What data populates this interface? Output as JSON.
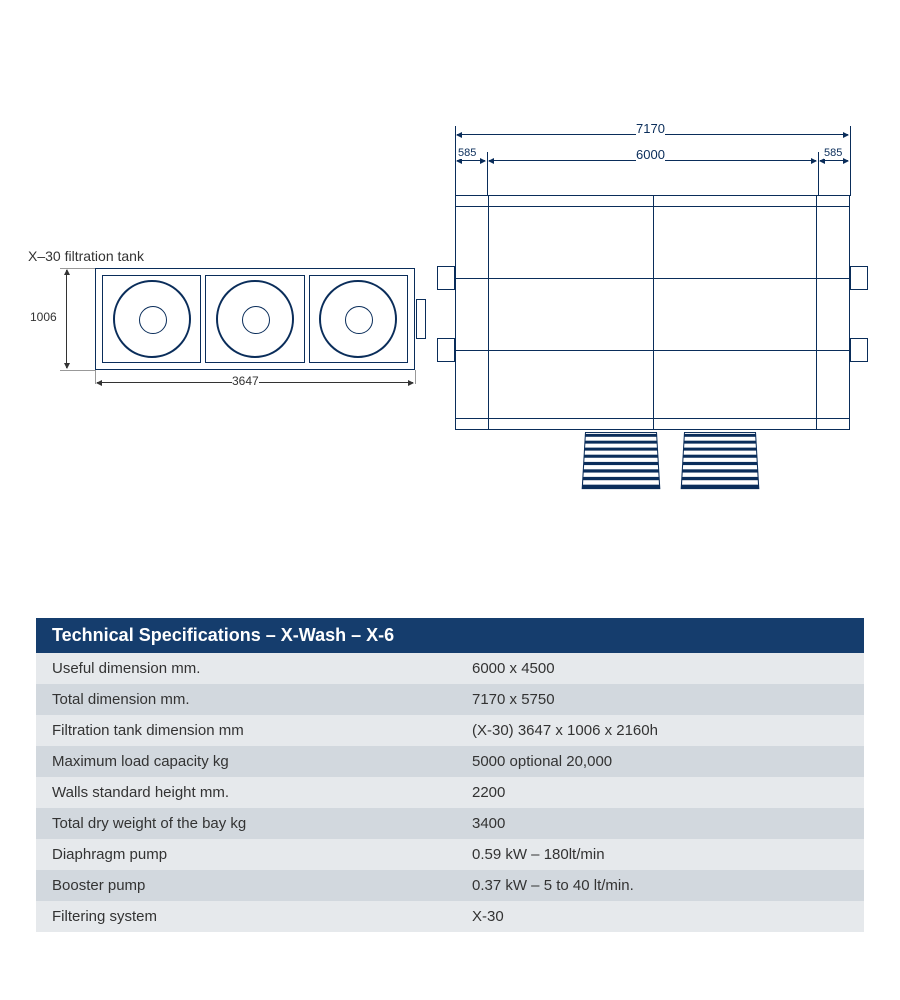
{
  "colors": {
    "drawing_stroke": "#0a2d5a",
    "text": "#333333",
    "table_header_bg": "#153d6d",
    "table_header_text": "#ffffff",
    "row_light": "#e6e9ec",
    "row_dark": "#d2d8de"
  },
  "tank": {
    "label": "X–30 filtration tank",
    "width_label": "3647",
    "height_label": "1006",
    "circles": 3
  },
  "bay": {
    "dim_total_label": "7170",
    "dim_inner_label": "6000",
    "dim_side_left_label": "585",
    "dim_side_right_label": "585"
  },
  "spec": {
    "title": "Technical Specifications – X-Wash – X-6",
    "rows": [
      {
        "label": "Useful dimension mm.",
        "value": "6000 x 4500"
      },
      {
        "label": "Total dimension mm.",
        "value": "7170 x 5750"
      },
      {
        "label": "Filtration tank dimension mm",
        "value": "(X-30)  3647 x 1006 x 2160h"
      },
      {
        "label": "Maximum load capacity kg",
        "value": "5000 optional 20,000"
      },
      {
        "label": "Walls standard height  mm.",
        "value": "2200"
      },
      {
        "label": "Total dry weight of the bay kg",
        "value": "3400"
      },
      {
        "label": "Diaphragm pump",
        "value": "0.59 kW – 180lt/min"
      },
      {
        "label": "Booster pump",
        "value": "0.37 kW – 5 to 40 lt/min."
      },
      {
        "label": "Filtering system",
        "value": "X-30"
      }
    ]
  }
}
